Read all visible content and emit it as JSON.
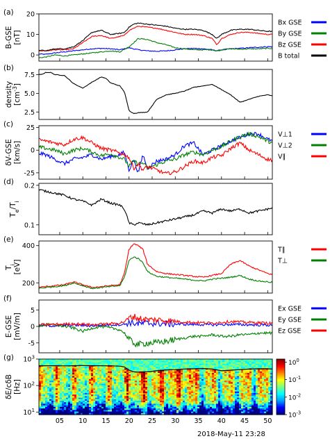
{
  "figure": {
    "date_label": "2018-May-11 23:28"
  },
  "chart_data": [
    {
      "type": "line",
      "panel_label": "(a)",
      "ylabel": [
        "B-GSE",
        "[nT]"
      ],
      "ylim": [
        -3,
        20
      ],
      "yticks": [
        0,
        10,
        20
      ],
      "series": [
        {
          "name": "Bx GSE",
          "color": "#0000ff",
          "x": [
            0,
            2,
            4,
            6,
            8,
            10,
            12,
            14,
            16,
            18,
            20,
            21,
            22,
            24,
            26,
            28,
            30,
            32,
            34,
            36,
            38,
            39,
            40,
            42,
            44,
            46,
            48,
            50,
            52
          ],
          "y": [
            0.5,
            0.3,
            1,
            1.5,
            2,
            2.5,
            3,
            3.2,
            3,
            2.5,
            3.5,
            3,
            2.5,
            2,
            1.8,
            2,
            2.5,
            3,
            3.2,
            3,
            2.5,
            2,
            2.5,
            3,
            3.2,
            3.5,
            3.8,
            4,
            4
          ]
        },
        {
          "name": "By GSE",
          "color": "#008000",
          "x": [
            0,
            2,
            4,
            6,
            8,
            10,
            12,
            14,
            16,
            18,
            20,
            21,
            22,
            24,
            26,
            28,
            30,
            32,
            34,
            36,
            38,
            39,
            40,
            42,
            44,
            46,
            48,
            50,
            52
          ],
          "y": [
            -1.5,
            -1,
            0,
            -0.5,
            0,
            0.5,
            1,
            1.5,
            2,
            1.5,
            4,
            6,
            8,
            7.5,
            6,
            5,
            3.5,
            3,
            2.5,
            2.5,
            2.5,
            2,
            2.5,
            3,
            2.8,
            3,
            3,
            3.2,
            3.2
          ]
        },
        {
          "name": "Bz GSE",
          "color": "#ff0000",
          "x": [
            0,
            2,
            4,
            6,
            8,
            10,
            12,
            14,
            16,
            18,
            19,
            20,
            21,
            22,
            24,
            26,
            28,
            30,
            32,
            34,
            36,
            38,
            39,
            40,
            42,
            44,
            46,
            48,
            50,
            52
          ],
          "y": [
            2,
            2,
            2.5,
            2.5,
            3,
            6,
            9,
            9.5,
            8,
            9,
            9.5,
            12,
            13,
            14,
            13.5,
            13,
            12,
            11,
            10,
            10,
            9.5,
            8,
            5,
            8,
            10,
            11,
            11,
            10.5,
            10,
            10
          ]
        },
        {
          "name": "B total",
          "color": "#000000",
          "x": [
            0,
            2,
            4,
            6,
            8,
            10,
            12,
            14,
            16,
            18,
            19,
            20,
            21,
            22,
            24,
            26,
            28,
            30,
            32,
            34,
            36,
            38,
            39,
            40,
            42,
            44,
            46,
            48,
            50,
            52
          ],
          "y": [
            2.5,
            2,
            3,
            3,
            4,
            7,
            11,
            12,
            10,
            10.5,
            11,
            13.5,
            15,
            15.5,
            15,
            14.5,
            14,
            13,
            12.5,
            12.5,
            12,
            10,
            8,
            10,
            12,
            12.5,
            12.5,
            12,
            11.5,
            11.5
          ]
        }
      ]
    },
    {
      "type": "line",
      "panel_label": "(b)",
      "ylabel": [
        "density",
        "[cm^-3]"
      ],
      "ylim": [
        1.5,
        8.2
      ],
      "yticks": [
        2.5,
        5.0,
        7.5
      ],
      "ytick_labels": [
        "2.5",
        "5.0",
        "7.5"
      ],
      "series": [
        {
          "name": "",
          "color": "#000000",
          "x": [
            0,
            1,
            2,
            3,
            4,
            6,
            8,
            10,
            12,
            14,
            15,
            16,
            18,
            19,
            20,
            21,
            22,
            24,
            26,
            28,
            30,
            32,
            34,
            36,
            38,
            40,
            42,
            44,
            46,
            48,
            50,
            52
          ],
          "y": [
            7.6,
            7.5,
            7.8,
            7.8,
            7.5,
            7.4,
            6.3,
            5.7,
            6.5,
            7.2,
            7.0,
            6.4,
            6.0,
            5.2,
            2.7,
            2.3,
            2.4,
            2.5,
            4.2,
            4.8,
            5.0,
            5.3,
            5.8,
            6.0,
            6.2,
            5.5,
            4.8,
            3.8,
            4.2,
            4.6,
            4.8,
            4.5
          ]
        }
      ]
    },
    {
      "type": "line",
      "panel_label": "(c)",
      "ylabel": [
        "δV-GSE",
        "[km/s]"
      ],
      "ylim": [
        -32,
        27
      ],
      "yticks": [
        -25,
        0,
        25
      ],
      "series": [
        {
          "name": "V⊥1",
          "color": "#0000ff",
          "x": [
            0,
            2,
            4,
            6,
            8,
            10,
            12,
            14,
            16,
            18,
            19,
            20,
            21,
            22,
            23,
            24,
            26,
            28,
            30,
            32,
            34,
            36,
            38,
            40,
            42,
            44,
            46,
            48,
            50,
            52
          ],
          "y": [
            -3,
            -5,
            -10,
            -15,
            -10,
            -8,
            -5,
            -10,
            -7,
            -5,
            -2,
            -22,
            -10,
            -25,
            -5,
            -20,
            -12,
            -10,
            -5,
            5,
            8,
            -5,
            0,
            5,
            10,
            14,
            18,
            18,
            12,
            8
          ]
        },
        {
          "name": "V⊥2",
          "color": "#008000",
          "x": [
            0,
            2,
            4,
            6,
            8,
            10,
            12,
            14,
            16,
            18,
            19,
            20,
            21,
            22,
            23,
            24,
            26,
            28,
            30,
            32,
            34,
            36,
            38,
            40,
            42,
            44,
            46,
            48,
            50,
            52
          ],
          "y": [
            4,
            2,
            0,
            -4,
            0,
            2,
            -2,
            -6,
            -4,
            -8,
            -10,
            -18,
            -12,
            -15,
            -14,
            -20,
            -16,
            -12,
            -10,
            -5,
            -2,
            -5,
            0,
            4,
            10,
            15,
            18,
            15,
            10,
            6
          ]
        },
        {
          "name": "V∥",
          "color": "#ff0000",
          "x": [
            0,
            2,
            4,
            6,
            8,
            10,
            12,
            14,
            16,
            18,
            19,
            20,
            21,
            22,
            23,
            24,
            26,
            28,
            30,
            32,
            34,
            36,
            38,
            40,
            42,
            44,
            46,
            48,
            50,
            52
          ],
          "y": [
            12,
            10,
            8,
            6,
            12,
            14,
            8,
            2,
            0,
            -3,
            -5,
            -8,
            -20,
            -15,
            -22,
            -18,
            -22,
            -26,
            -24,
            -18,
            -12,
            -14,
            -8,
            -6,
            2,
            8,
            0,
            -5,
            -10,
            -12
          ]
        }
      ]
    },
    {
      "type": "line",
      "panel_label": "(d)",
      "ylabel": [
        "T_e/T_i",
        ""
      ],
      "ylim": [
        0.075,
        0.205
      ],
      "yticks": [
        0.1,
        0.2
      ],
      "ytick_labels": [
        "0.1",
        "0.2"
      ],
      "series": [
        {
          "name": "",
          "color": "#000000",
          "x": [
            0,
            2,
            4,
            6,
            8,
            10,
            12,
            14,
            16,
            18,
            19,
            20,
            21,
            22,
            24,
            26,
            28,
            30,
            32,
            34,
            36,
            38,
            40,
            42,
            44,
            46,
            48,
            50,
            52
          ],
          "y": [
            0.19,
            0.185,
            0.18,
            0.175,
            0.165,
            0.16,
            0.15,
            0.165,
            0.155,
            0.15,
            0.14,
            0.105,
            0.1,
            0.105,
            0.1,
            0.105,
            0.11,
            0.115,
            0.12,
            0.125,
            0.135,
            0.13,
            0.14,
            0.135,
            0.14,
            0.13,
            0.135,
            0.14,
            0.145
          ]
        }
      ]
    },
    {
      "type": "line",
      "panel_label": "(e)",
      "ylabel": [
        "T_i",
        "[eV]"
      ],
      "ylim": [
        145,
        425
      ],
      "yticks": [
        200,
        400
      ],
      "series": [
        {
          "name": "T∥",
          "color": "#ff0000",
          "x": [
            0,
            2,
            4,
            6,
            8,
            10,
            12,
            14,
            16,
            18,
            19,
            20,
            21,
            22,
            23,
            24,
            26,
            28,
            30,
            32,
            34,
            36,
            38,
            40,
            42,
            44,
            46,
            48,
            50,
            52
          ],
          "y": [
            175,
            180,
            185,
            190,
            205,
            190,
            175,
            180,
            185,
            190,
            250,
            380,
            410,
            400,
            380,
            300,
            260,
            250,
            245,
            240,
            235,
            230,
            240,
            250,
            300,
            320,
            290,
            270,
            250,
            240
          ]
        },
        {
          "name": "T⊥",
          "color": "#008000",
          "x": [
            0,
            2,
            4,
            6,
            8,
            10,
            12,
            14,
            16,
            18,
            19,
            20,
            21,
            22,
            23,
            24,
            26,
            28,
            30,
            32,
            34,
            36,
            38,
            40,
            42,
            44,
            46,
            48,
            50,
            52
          ],
          "y": [
            170,
            175,
            180,
            185,
            200,
            185,
            170,
            175,
            180,
            185,
            230,
            320,
            340,
            330,
            310,
            260,
            235,
            230,
            225,
            220,
            215,
            210,
            220,
            225,
            230,
            240,
            220,
            210,
            205,
            200
          ]
        }
      ]
    },
    {
      "type": "line",
      "panel_label": "(f)",
      "ylabel": [
        "E-GSE",
        "[mV/m]"
      ],
      "ylim": [
        -8,
        8
      ],
      "yticks": [
        -5,
        0,
        5
      ],
      "series": [
        {
          "name": "Ex GSE",
          "color": "#0000ff",
          "x": [
            0,
            4,
            8,
            12,
            16,
            19,
            20,
            22,
            24,
            26,
            28,
            30,
            34,
            38,
            42,
            46,
            50,
            52
          ],
          "y": [
            0.3,
            0.2,
            0.4,
            0.2,
            0.5,
            0.6,
            1.2,
            0.8,
            1.0,
            0.9,
            0.8,
            0.7,
            0.6,
            0.5,
            0.6,
            0.5,
            0.4,
            0.3
          ]
        },
        {
          "name": "Ey GSE",
          "color": "#008000",
          "x": [
            0,
            2,
            4,
            6,
            8,
            10,
            12,
            14,
            16,
            18,
            19,
            20,
            21,
            22,
            24,
            26,
            28,
            30,
            32,
            34,
            36,
            38,
            40,
            42,
            44,
            46,
            48,
            50,
            52
          ],
          "y": [
            0,
            0.5,
            0.5,
            0,
            -0.5,
            -1.5,
            -0.5,
            0,
            -0.5,
            -1,
            -2,
            -4,
            -5,
            -5.5,
            -5,
            -5,
            -4.5,
            -4,
            -3.5,
            -3,
            -3,
            -2.5,
            -3,
            -3,
            -2.5,
            -2.5,
            -2,
            -2,
            -2
          ]
        },
        {
          "name": "Ez GSE",
          "color": "#ff0000",
          "x": [
            0,
            4,
            8,
            12,
            16,
            18,
            19,
            20,
            21,
            22,
            24,
            26,
            28,
            30,
            34,
            38,
            42,
            46,
            50,
            52
          ],
          "y": [
            0.5,
            0.6,
            0.8,
            0.5,
            0.8,
            1,
            1.5,
            2.5,
            3,
            2.5,
            2,
            2,
            1.8,
            1.5,
            1.2,
            1,
            1.5,
            1.2,
            1,
            0.8
          ]
        }
      ]
    },
    {
      "type": "heatmap",
      "panel_label": "(g)",
      "ylabel": [
        "δE/cδB",
        "[Hz]"
      ],
      "yscale": "log",
      "ylim": [
        8,
        1000
      ],
      "yticks": [
        10,
        100,
        1000
      ],
      "ytick_labels": [
        "10^1",
        "10^2",
        "10^3"
      ],
      "colorbar": {
        "scale": "log",
        "range": [
          0.001,
          1.5
        ],
        "ticks": [
          1,
          0.1,
          0.01,
          0.001
        ],
        "tick_labels": [
          "10^0",
          "10^-1",
          "10^-2",
          "10^-3"
        ],
        "colormap": [
          "#000080",
          "#0000ff",
          "#00a0ff",
          "#00ffff",
          "#7fff7f",
          "#ffff00",
          "#ff8000",
          "#ff0000",
          "#800000"
        ]
      },
      "overlay_line": {
        "color": "#000000",
        "x": [
          0,
          2,
          4,
          6,
          8,
          10,
          12,
          14,
          16,
          18,
          19,
          20,
          21,
          22,
          24,
          26,
          28,
          30,
          32,
          34,
          36,
          38,
          40,
          42,
          44,
          46,
          48,
          50,
          52
        ],
        "y": [
          550,
          560,
          560,
          555,
          560,
          570,
          560,
          560,
          555,
          540,
          500,
          380,
          330,
          320,
          330,
          360,
          390,
          400,
          420,
          430,
          440,
          420,
          360,
          380,
          400,
          420,
          430,
          430,
          420
        ]
      }
    }
  ],
  "x_axis": {
    "xlim": [
      0.5,
      51
    ],
    "ticks": [
      5,
      10,
      15,
      20,
      25,
      30,
      35,
      40,
      45,
      50
    ],
    "tick_labels": [
      "05",
      "10",
      "15",
      "20",
      "25",
      "30",
      "35",
      "40",
      "45",
      "50"
    ]
  }
}
